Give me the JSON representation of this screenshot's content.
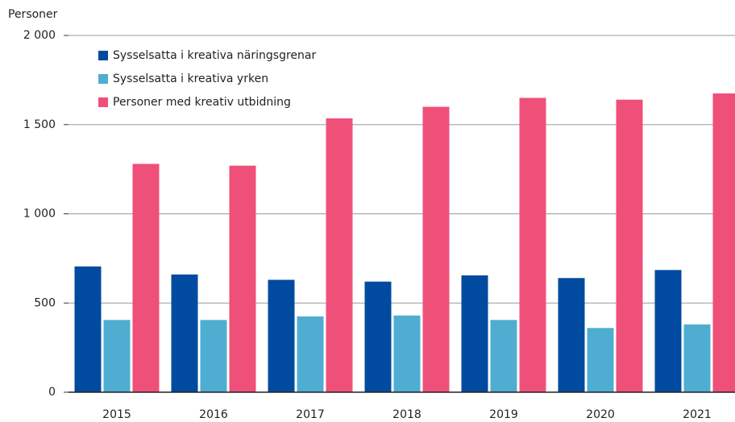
{
  "chart_data": {
    "type": "bar",
    "y_label": "Personer",
    "categories": [
      "2015",
      "2016",
      "2017",
      "2018",
      "2019",
      "2020",
      "2021"
    ],
    "series": [
      {
        "name": "Sysselsatta i kreativa näringsgrenar",
        "color": "#004b9f",
        "values": [
          705,
          660,
          630,
          620,
          655,
          640,
          685
        ]
      },
      {
        "name": "Sysselsatta i kreativa yrken",
        "color": "#4fadd1",
        "values": [
          405,
          405,
          425,
          430,
          405,
          360,
          380
        ]
      },
      {
        "name": "Personer med kreativ utbidning",
        "color": "#ef507a",
        "values": [
          1280,
          1270,
          1535,
          1600,
          1650,
          1640,
          1675
        ]
      }
    ],
    "ylim": [
      0,
      2000
    ],
    "yticks": [
      0,
      500,
      {
        "value": 1000,
        "label": "1 000"
      },
      {
        "value": 1500,
        "label": "1 500"
      },
      {
        "value": 2000,
        "label": "2 000"
      }
    ],
    "grid": true,
    "legend": "top-left"
  }
}
